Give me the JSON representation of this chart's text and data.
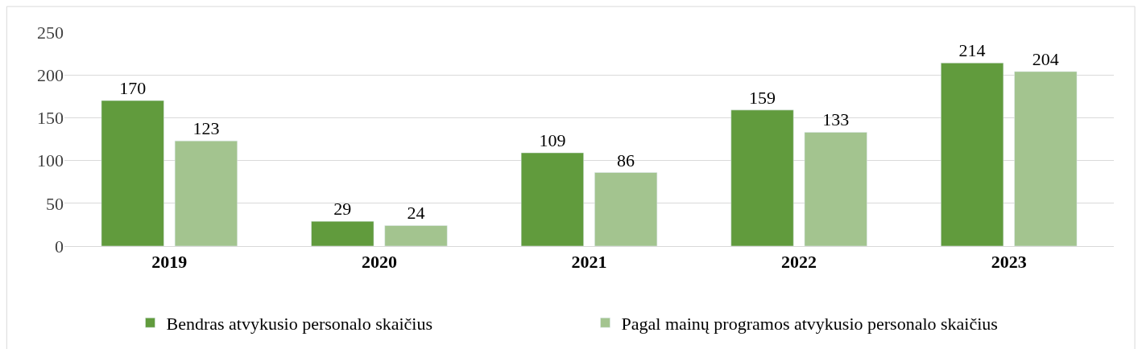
{
  "chart_data": {
    "type": "bar",
    "categories": [
      "2019",
      "2020",
      "2021",
      "2022",
      "2023"
    ],
    "series": [
      {
        "name": "Bendras atvykusio personalo skaičius",
        "color": "#619b3d",
        "values": [
          170,
          29,
          109,
          159,
          214
        ]
      },
      {
        "name": "Pagal mainų programos atvykusio personalo skaičius",
        "color": "#a3c48f",
        "values": [
          123,
          24,
          86,
          133,
          204
        ]
      }
    ],
    "ylim": [
      0,
      250
    ],
    "yticks": [
      0,
      50,
      100,
      150,
      200,
      250
    ],
    "grid": "y",
    "legend": "bottom",
    "data_labels": true
  }
}
